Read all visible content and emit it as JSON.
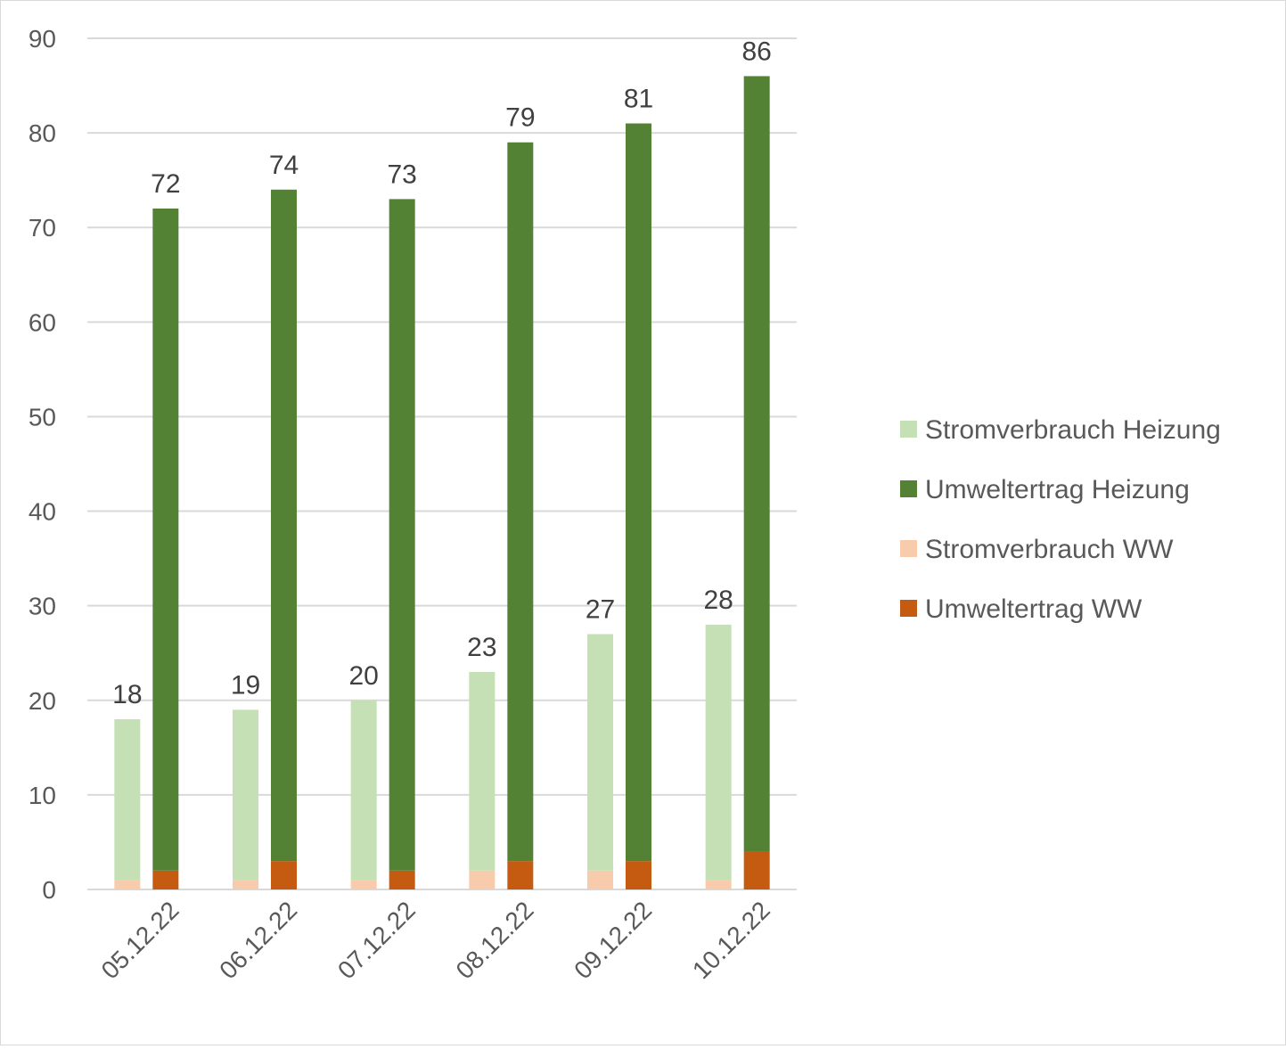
{
  "chart_data": {
    "type": "bar",
    "stacked": true,
    "categories": [
      "05.12.22",
      "06.12.22",
      "07.12.22",
      "08.12.22",
      "09.12.22",
      "10.12.22"
    ],
    "stacks": [
      {
        "name": "Strom",
        "total_labels": [
          18,
          19,
          20,
          23,
          27,
          28
        ],
        "series": [
          {
            "name": "Stromverbrauch WW",
            "color": "#f8cbad",
            "values": [
              1,
              1,
              1,
              2,
              2,
              1
            ]
          },
          {
            "name": "Stromverbrauch Heizung",
            "color": "#c5e0b4",
            "values": [
              17,
              18,
              19,
              21,
              25,
              27
            ]
          }
        ]
      },
      {
        "name": "Umwelt",
        "total_labels": [
          72,
          74,
          73,
          79,
          81,
          86
        ],
        "series": [
          {
            "name": "Umweltertrag WW",
            "color": "#c55a11",
            "values": [
              2,
              3,
              2,
              3,
              3,
              4
            ]
          },
          {
            "name": "Umweltertrag Heizung",
            "color": "#548235",
            "values": [
              70,
              71,
              71,
              76,
              78,
              82
            ]
          }
        ]
      }
    ],
    "ylim": [
      0,
      90
    ],
    "yticks": [
      0,
      10,
      20,
      30,
      40,
      50,
      60,
      70,
      80,
      90
    ],
    "grid": true,
    "legend_position": "right",
    "legend": [
      {
        "name": "Stromverbrauch Heizung",
        "color": "#c5e0b4"
      },
      {
        "name": "Umweltertrag Heizung",
        "color": "#548235"
      },
      {
        "name": "Stromverbrauch WW",
        "color": "#f8cbad"
      },
      {
        "name": "Umweltertrag WW",
        "color": "#c55a11"
      }
    ],
    "title": "",
    "xlabel": "",
    "ylabel": ""
  }
}
